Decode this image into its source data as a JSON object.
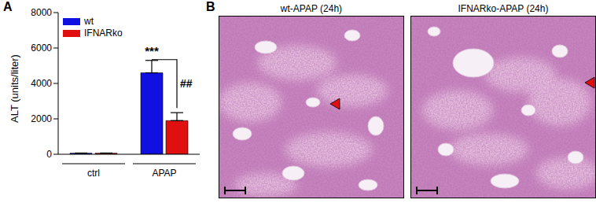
{
  "chart_data": {
    "type": "bar",
    "panel": "A",
    "y_label": "ALT (units/liter)",
    "categories": [
      "ctrl",
      "APAP"
    ],
    "series": [
      {
        "name": "wt",
        "color": "#1010e0",
        "values": [
          60,
          4600
        ],
        "errors": [
          10,
          700
        ]
      },
      {
        "name": "IFNARko",
        "color": "#e01010",
        "values": [
          60,
          1900
        ],
        "errors": [
          10,
          450
        ]
      }
    ],
    "ylim": [
      0,
      8000
    ],
    "yticks": [
      0,
      2000,
      4000,
      6000,
      8000
    ],
    "grid": false,
    "legend": "upper-left",
    "annotations": [
      {
        "text": "***",
        "category": "APAP",
        "series": "wt"
      },
      {
        "text": "##",
        "category": "APAP",
        "series": [
          "wt",
          "IFNARko"
        ]
      }
    ]
  },
  "images_panel": {
    "panel": "B",
    "images": [
      "wt-APAP (24h)",
      "IFNARko-APAP (24h)"
    ]
  }
}
